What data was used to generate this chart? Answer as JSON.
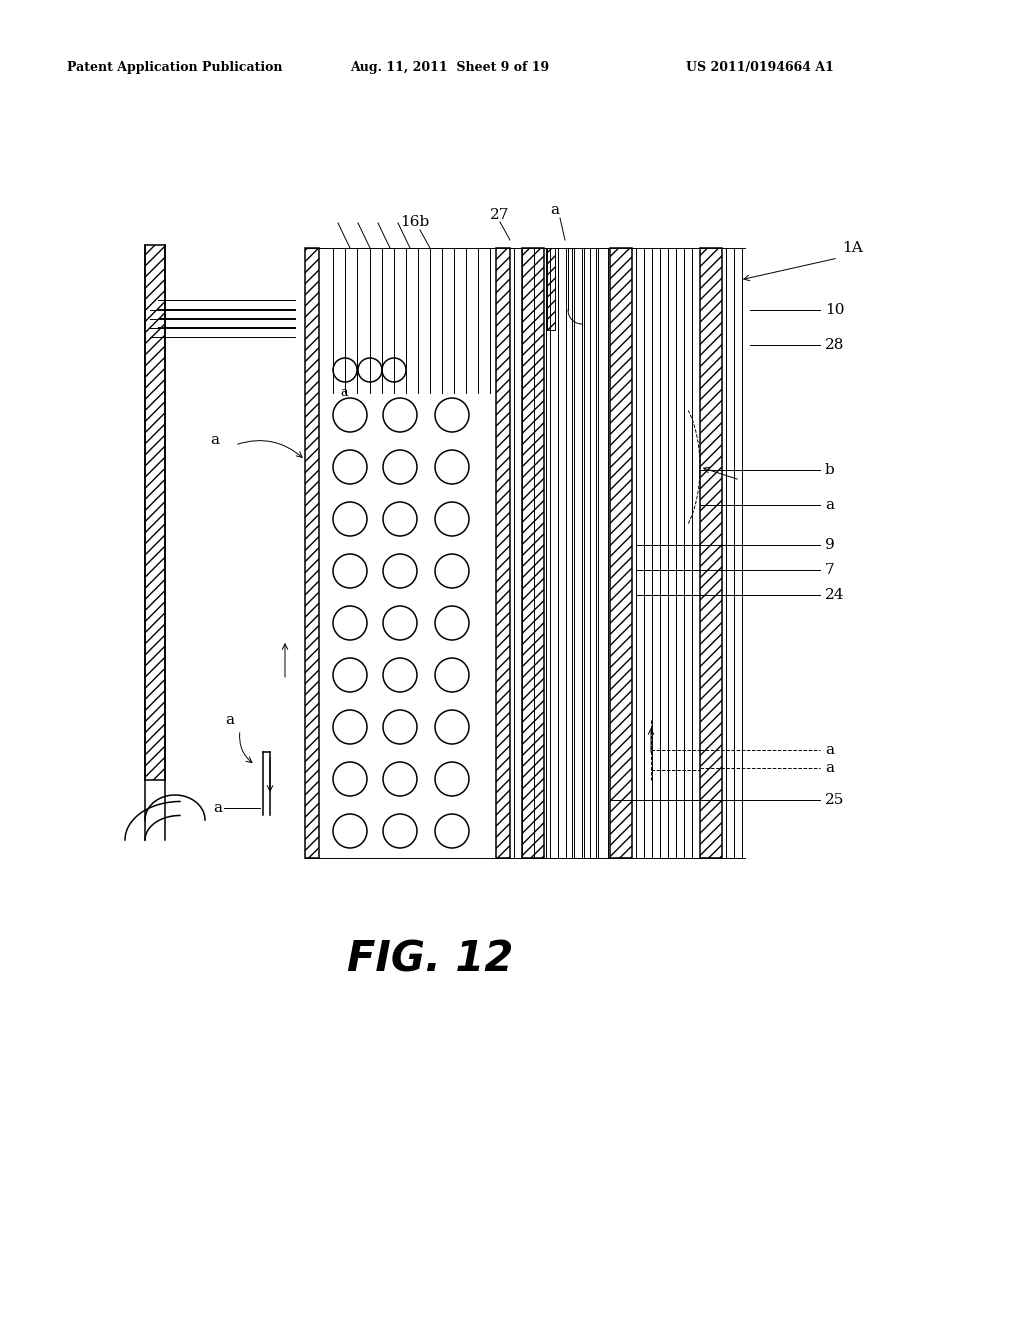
{
  "title": "FIG. 12",
  "header_left": "Patent Application Publication",
  "header_center": "Aug. 11, 2011  Sheet 9 of 19",
  "header_right": "US 2011/0194664 A1",
  "bg_color": "#ffffff",
  "line_color": "#000000",
  "label_1A": "1A",
  "label_10": "10",
  "label_28": "28",
  "label_9": "9",
  "label_7": "7",
  "label_24": "24",
  "label_25": "25",
  "label_27": "27",
  "label_16b": "16b",
  "label_a": "a",
  "label_b": "b",
  "fig_caption": "FIG. 12"
}
